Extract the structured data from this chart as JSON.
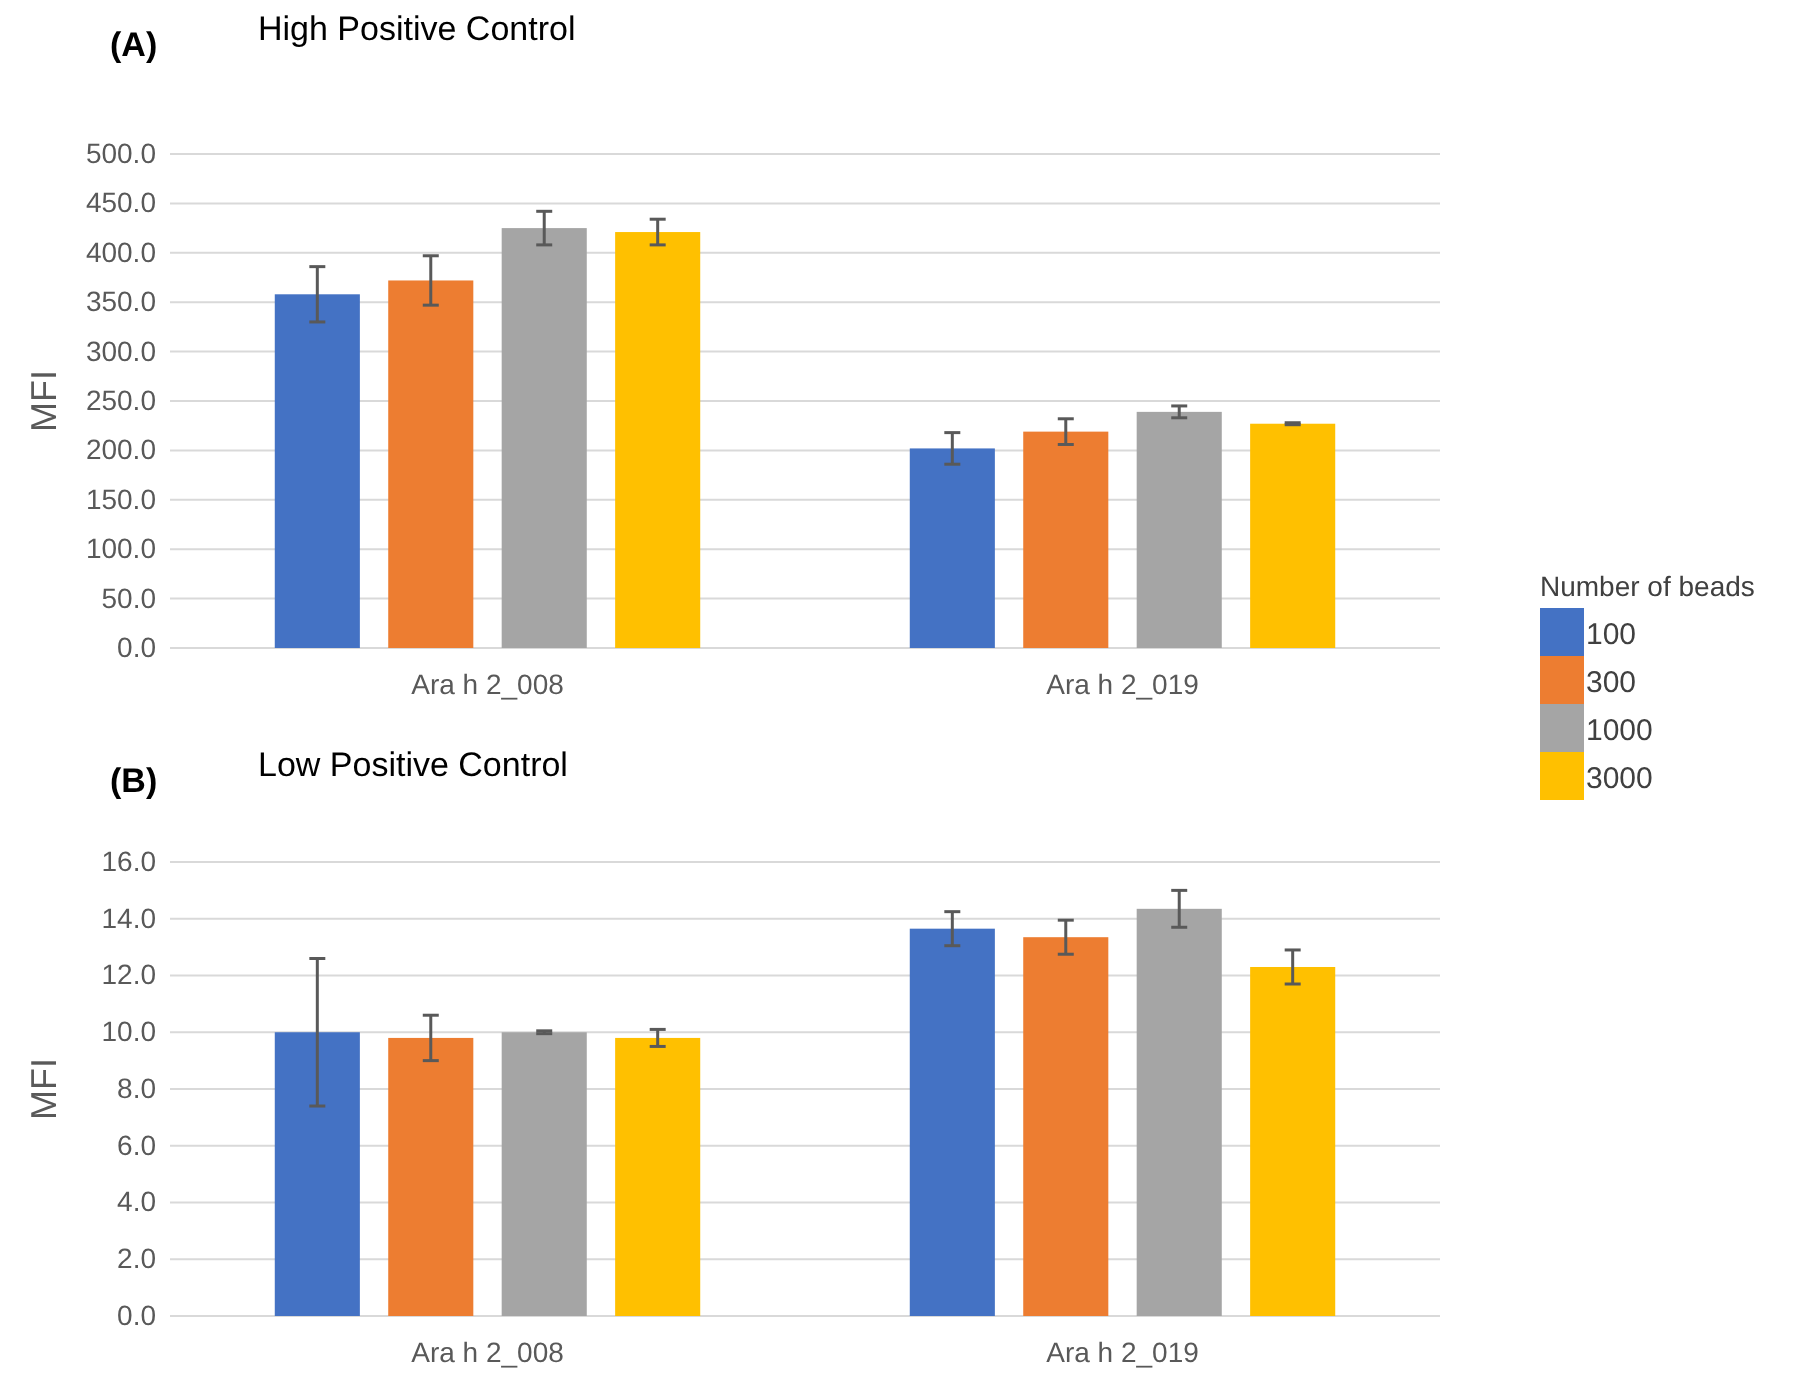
{
  "chart_data": [
    {
      "type": "bar",
      "title": "High Positive Control",
      "annotations": [
        "(A)"
      ],
      "ylabel": "MFI",
      "legend_title": "Number of beads",
      "legend": "right",
      "grid": "y",
      "categories": [
        "Ara h 2_008",
        "Ara h 2_019"
      ],
      "ylim": [
        0,
        500
      ],
      "yticks": [
        {
          "value": 0,
          "label": "0.0"
        },
        {
          "value": 50,
          "label": "50.0"
        },
        {
          "value": 100,
          "label": "100.0"
        },
        {
          "value": 150,
          "label": "150.0"
        },
        {
          "value": 200,
          "label": "200.0"
        },
        {
          "value": 250,
          "label": "250.0"
        },
        {
          "value": 300,
          "label": "300.0"
        },
        {
          "value": 350,
          "label": "350.0"
        },
        {
          "value": 400,
          "label": "400.0"
        },
        {
          "value": 450,
          "label": "450.0"
        },
        {
          "value": 500,
          "label": "500.0"
        }
      ],
      "series": [
        {
          "name": "100",
          "color": "#4472c4",
          "values": [
            358,
            202
          ],
          "errors": [
            28,
            16
          ]
        },
        {
          "name": "300",
          "color": "#ed7d31",
          "values": [
            372,
            219
          ],
          "errors": [
            25,
            13
          ]
        },
        {
          "name": "1000",
          "color": "#a5a5a5",
          "values": [
            425,
            239
          ],
          "errors": [
            17,
            6
          ]
        },
        {
          "name": "3000",
          "color": "#ffc000",
          "values": [
            421,
            227
          ],
          "errors": [
            13,
            1
          ]
        }
      ]
    },
    {
      "type": "bar",
      "title": "Low Positive Control",
      "annotations": [
        "(B)"
      ],
      "ylabel": "MFI",
      "grid": "y",
      "categories": [
        "Ara h 2_008",
        "Ara h 2_019"
      ],
      "ylim": [
        0,
        16
      ],
      "yticks": [
        {
          "value": 0,
          "label": "0.0"
        },
        {
          "value": 2,
          "label": "2.0"
        },
        {
          "value": 4,
          "label": "4.0"
        },
        {
          "value": 6,
          "label": "6.0"
        },
        {
          "value": 8,
          "label": "8.0"
        },
        {
          "value": 10,
          "label": "10.0"
        },
        {
          "value": 12,
          "label": "12.0"
        },
        {
          "value": 14,
          "label": "14.0"
        },
        {
          "value": 16,
          "label": "16.0"
        }
      ],
      "series": [
        {
          "color": "#4472c4",
          "values": [
            10.0,
            13.65
          ],
          "errors": [
            2.6,
            0.6
          ]
        },
        {
          "color": "#ed7d31",
          "values": [
            9.8,
            13.35
          ],
          "errors": [
            0.8,
            0.6
          ]
        },
        {
          "color": "#a5a5a5",
          "values": [
            10.0,
            14.35
          ],
          "errors": [
            0.05,
            0.65
          ]
        },
        {
          "color": "#ffc000",
          "values": [
            9.8,
            12.3
          ],
          "errors": [
            0.3,
            0.6
          ]
        }
      ]
    }
  ]
}
